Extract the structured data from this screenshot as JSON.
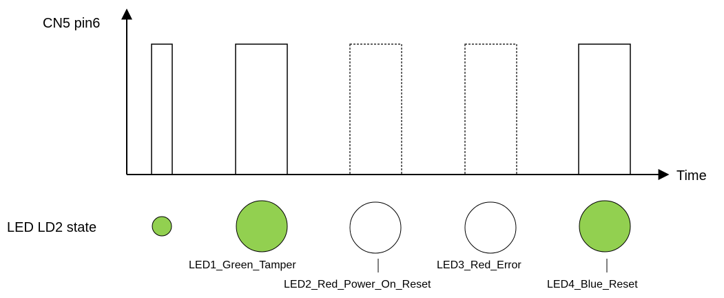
{
  "diagram": {
    "y_axis_label": "CN5 pin6",
    "x_axis_label": "Time",
    "state_row_label": "LED LD2 state",
    "colors": {
      "line": "#000000",
      "led_on": "#92d050",
      "led_off": "#ffffff"
    },
    "pulses": [
      {
        "id": "pulse-0",
        "style": "solid"
      },
      {
        "id": "pulse-1",
        "style": "solid"
      },
      {
        "id": "pulse-2",
        "style": "dashed"
      },
      {
        "id": "pulse-3",
        "style": "dashed"
      },
      {
        "id": "pulse-4",
        "style": "solid"
      }
    ],
    "leds": [
      {
        "id": "led-indicator",
        "state": "on",
        "label": ""
      },
      {
        "id": "led1",
        "state": "on",
        "label": "LED1_Green_Tamper"
      },
      {
        "id": "led2",
        "state": "off",
        "label": "LED2_Red_Power_On_Reset"
      },
      {
        "id": "led3",
        "state": "off",
        "label": "LED3_Red_Error"
      },
      {
        "id": "led4",
        "state": "on",
        "label": "LED4_Blue_Reset"
      }
    ]
  }
}
